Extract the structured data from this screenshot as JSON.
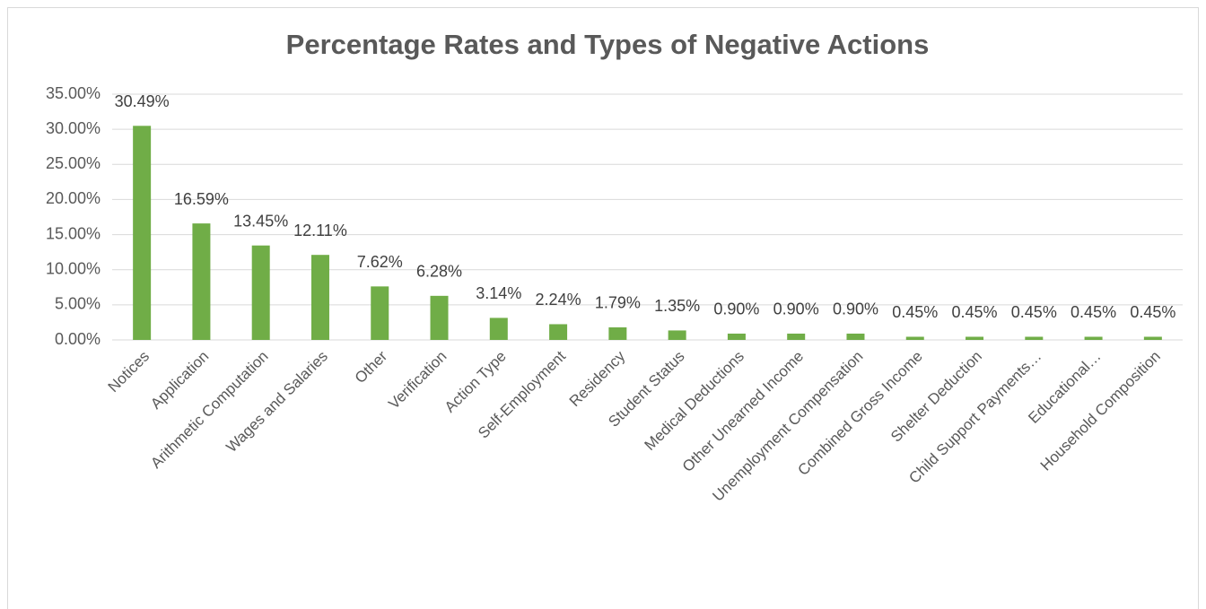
{
  "chart_data": {
    "type": "bar",
    "title": "Percentage Rates and Types of Negative Actions",
    "categories": [
      "Notices",
      "Application",
      "Arithmetic Computation",
      "Wages and Salaries",
      "Other",
      "Verification",
      "Action Type",
      "Self-Employment",
      "Residency",
      "Student Status",
      "Medical Deductions",
      "Other Unearned Income",
      "Unemployment Compensation",
      "Combined Gross Income",
      "Shelter Deduction",
      "Child Support Payments…",
      "Educational…",
      "Household Composition"
    ],
    "values": [
      30.49,
      16.59,
      13.45,
      12.11,
      7.62,
      6.28,
      3.14,
      2.24,
      1.79,
      1.35,
      0.9,
      0.9,
      0.9,
      0.45,
      0.45,
      0.45,
      0.45,
      0.45
    ],
    "value_labels": [
      "30.49%",
      "16.59%",
      "13.45%",
      "12.11%",
      "7.62%",
      "6.28%",
      "3.14%",
      "2.24%",
      "1.79%",
      "1.35%",
      "0.90%",
      "0.90%",
      "0.90%",
      "0.45%",
      "0.45%",
      "0.45%",
      "0.45%",
      "0.45%"
    ],
    "color": "#70ad47",
    "ylim": [
      0,
      35
    ],
    "yticks": [
      {
        "value": 0,
        "label": "0.00%"
      },
      {
        "value": 5,
        "label": "5.00%"
      },
      {
        "value": 10,
        "label": "10.00%"
      },
      {
        "value": 15,
        "label": "15.00%"
      },
      {
        "value": 20,
        "label": "20.00%"
      },
      {
        "value": 25,
        "label": "25.00%"
      },
      {
        "value": 30,
        "label": "30.00%"
      },
      {
        "value": 35,
        "label": "35.00%"
      }
    ],
    "grid": true
  }
}
